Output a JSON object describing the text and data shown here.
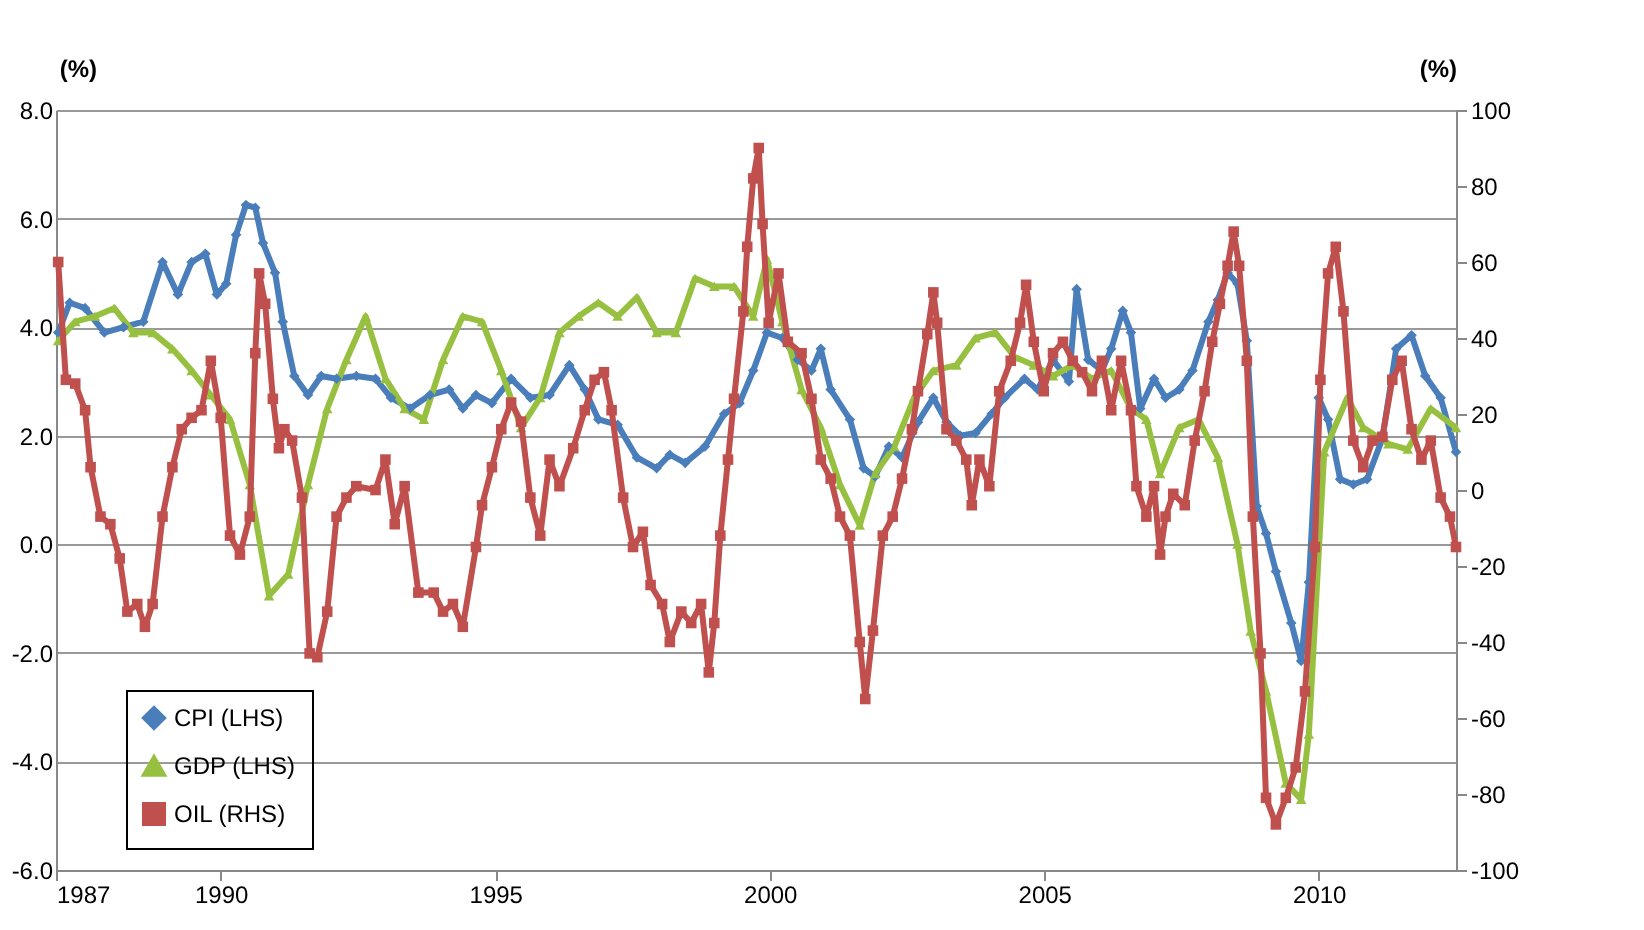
{
  "chart_data": {
    "type": "line",
    "xlim": [
      1987,
      2012.5
    ],
    "xticks": [
      1987,
      1990,
      1995,
      2000,
      2005,
      2010
    ],
    "ylim": [
      -6,
      8
    ],
    "yticks": [
      {
        "value": -6,
        "label": "-6.0"
      },
      {
        "value": -4,
        "label": "-4.0"
      },
      {
        "value": -2,
        "label": "-2.0"
      },
      {
        "value": 0,
        "label": "0.0"
      },
      {
        "value": 2,
        "label": "2.0"
      },
      {
        "value": 4,
        "label": "4.0"
      },
      {
        "value": 6,
        "label": "6.0"
      },
      {
        "value": 8,
        "label": "8.0"
      }
    ],
    "y2lim": [
      -100,
      100
    ],
    "y2ticks": [
      -100,
      -80,
      -60,
      -40,
      -20,
      0,
      20,
      40,
      60,
      80,
      100
    ],
    "ylabel": "(%)",
    "y2label": "(%)",
    "grid": "y",
    "legend": "bottom left",
    "line_style": "solid",
    "series": [
      {
        "name": "CPI (LHS)",
        "color": "#4a7ebb",
        "marker": "diamond",
        "x": [
          1987.04,
          1987.25,
          1987.53,
          1987.88,
          1988.23,
          1988.59,
          1988.94,
          1989.22,
          1989.47,
          1989.72,
          1989.93,
          1990.1,
          1990.28,
          1990.46,
          1990.63,
          1990.77,
          1990.99,
          1991.13,
          1991.34,
          1991.59,
          1991.83,
          1992.11,
          1992.47,
          1992.82,
          1993.1,
          1993.45,
          1993.81,
          1994.16,
          1994.41,
          1994.65,
          1994.94,
          1995.29,
          1995.64,
          1995.99,
          1996.35,
          1996.63,
          1996.88,
          1997.23,
          1997.58,
          1997.94,
          1998.18,
          1998.46,
          1998.82,
          1999.17,
          1999.45,
          1999.7,
          1999.95,
          2000.23,
          2000.51,
          2000.76,
          2000.93,
          2001.11,
          2001.46,
          2001.71,
          2001.92,
          2002.17,
          2002.41,
          2002.7,
          2002.98,
          2003.22,
          2003.47,
          2003.75,
          2004.04,
          2004.28,
          2004.64,
          2004.88,
          2005.16,
          2005.45,
          2005.59,
          2005.8,
          2006.05,
          2006.22,
          2006.43,
          2006.58,
          2006.75,
          2007.0,
          2007.21,
          2007.46,
          2007.7,
          2007.99,
          2008.16,
          2008.34,
          2008.52,
          2008.69,
          2008.87,
          2009.04,
          2009.22,
          2009.5,
          2009.68,
          2009.82,
          2010.0,
          2010.17,
          2010.39,
          2010.63,
          2010.88,
          2011.16,
          2011.41,
          2011.69,
          2011.94,
          2012.22,
          2012.5
        ],
        "values": [
          3.9,
          4.45,
          4.35,
          3.9,
          4.0,
          4.1,
          5.2,
          4.6,
          5.2,
          5.35,
          4.6,
          4.8,
          5.7,
          6.25,
          6.2,
          5.55,
          5.0,
          4.1,
          3.1,
          2.75,
          3.1,
          3.05,
          3.1,
          3.05,
          2.7,
          2.5,
          2.75,
          2.85,
          2.5,
          2.75,
          2.6,
          3.05,
          2.7,
          2.75,
          3.3,
          2.85,
          2.3,
          2.2,
          1.6,
          1.4,
          1.65,
          1.5,
          1.8,
          2.4,
          2.6,
          3.2,
          3.9,
          3.8,
          3.4,
          3.2,
          3.6,
          2.85,
          2.3,
          1.4,
          1.25,
          1.8,
          1.6,
          2.25,
          2.7,
          2.25,
          2.0,
          2.05,
          2.4,
          2.7,
          3.05,
          2.85,
          3.4,
          3.0,
          4.7,
          3.4,
          3.2,
          3.6,
          4.3,
          3.9,
          2.5,
          3.05,
          2.7,
          2.85,
          3.2,
          4.1,
          4.5,
          5.0,
          4.8,
          3.75,
          0.7,
          0.2,
          -0.5,
          -1.45,
          -2.15,
          -0.7,
          2.7,
          2.3,
          1.2,
          1.1,
          1.2,
          1.95,
          3.6,
          3.85,
          3.1,
          2.7,
          1.7
        ]
      },
      {
        "name": "GDP (LHS)",
        "color": "#98c040",
        "marker": "triangle",
        "x": [
          1987.04,
          1987.35,
          1987.71,
          1988.06,
          1988.41,
          1988.76,
          1989.12,
          1989.47,
          1989.82,
          1990.17,
          1990.53,
          1990.88,
          1991.23,
          1991.59,
          1991.94,
          1992.29,
          1992.64,
          1993.0,
          1993.35,
          1993.7,
          1994.05,
          1994.41,
          1994.76,
          1995.11,
          1995.47,
          1995.82,
          1996.17,
          1996.52,
          1996.88,
          1997.23,
          1997.58,
          1997.94,
          1998.29,
          1998.64,
          1998.99,
          1999.35,
          1999.7,
          1999.95,
          2000.23,
          2000.58,
          2000.93,
          2001.28,
          2001.64,
          2001.92,
          2002.27,
          2002.63,
          2002.98,
          2003.4,
          2003.75,
          2004.11,
          2004.46,
          2004.81,
          2005.16,
          2005.52,
          2005.87,
          2006.22,
          2006.58,
          2006.86,
          2007.11,
          2007.46,
          2007.81,
          2008.16,
          2008.52,
          2008.76,
          2009.04,
          2009.4,
          2009.68,
          2009.82,
          2010.1,
          2010.52,
          2010.81,
          2011.27,
          2011.62,
          2012.04,
          2012.5
        ],
        "values": [
          3.75,
          4.1,
          4.2,
          4.35,
          3.9,
          3.9,
          3.6,
          3.2,
          2.75,
          2.3,
          1.1,
          -0.95,
          -0.55,
          1.1,
          2.5,
          3.4,
          4.2,
          3.05,
          2.5,
          2.3,
          3.4,
          4.2,
          4.1,
          3.2,
          2.15,
          2.7,
          3.9,
          4.2,
          4.45,
          4.2,
          4.55,
          3.9,
          3.9,
          4.9,
          4.75,
          4.75,
          4.2,
          5.25,
          4.1,
          2.85,
          2.15,
          1.1,
          0.35,
          1.3,
          1.8,
          2.7,
          3.2,
          3.3,
          3.8,
          3.9,
          3.45,
          3.3,
          3.1,
          3.3,
          3.05,
          3.2,
          2.5,
          2.3,
          1.3,
          2.15,
          2.3,
          1.6,
          0.0,
          -1.6,
          -2.7,
          -4.4,
          -4.7,
          -3.5,
          1.7,
          2.7,
          2.15,
          1.85,
          1.75,
          2.5,
          2.15
        ]
      },
      {
        "name": "OIL (RHS)",
        "color": "#c0504d",
        "marker": "square",
        "axis": "y2",
        "x": [
          1987.04,
          1987.18,
          1987.35,
          1987.53,
          1987.63,
          1987.81,
          1987.99,
          1988.16,
          1988.3,
          1988.48,
          1988.62,
          1988.76,
          1988.94,
          1989.12,
          1989.29,
          1989.47,
          1989.65,
          1989.82,
          1990.0,
          1990.17,
          1990.35,
          1990.53,
          1990.63,
          1990.7,
          1990.81,
          1990.95,
          1991.06,
          1991.16,
          1991.3,
          1991.48,
          1991.62,
          1991.76,
          1991.94,
          1992.11,
          1992.29,
          1992.47,
          1992.82,
          1993.0,
          1993.17,
          1993.35,
          1993.6,
          1993.88,
          1994.05,
          1994.23,
          1994.41,
          1994.65,
          1994.76,
          1994.94,
          1995.11,
          1995.29,
          1995.47,
          1995.64,
          1995.82,
          1995.99,
          1996.17,
          1996.42,
          1996.63,
          1996.81,
          1996.98,
          1997.12,
          1997.33,
          1997.51,
          1997.69,
          1997.83,
          1998.04,
          1998.18,
          1998.39,
          1998.57,
          1998.75,
          1998.89,
          1998.99,
          1999.1,
          1999.24,
          1999.35,
          1999.52,
          1999.59,
          1999.7,
          1999.8,
          1999.87,
          1999.98,
          2000.16,
          2000.33,
          2000.58,
          2000.76,
          2000.93,
          2001.11,
          2001.28,
          2001.46,
          2001.64,
          2001.74,
          2001.88,
          2002.06,
          2002.24,
          2002.41,
          2002.59,
          2002.7,
          2002.87,
          2002.98,
          2003.05,
          2003.22,
          2003.4,
          2003.58,
          2003.68,
          2003.82,
          2004.0,
          2004.18,
          2004.39,
          2004.56,
          2004.67,
          2004.81,
          2004.99,
          2005.16,
          2005.34,
          2005.52,
          2005.69,
          2005.87,
          2006.05,
          2006.22,
          2006.4,
          2006.58,
          2006.68,
          2006.86,
          2007.0,
          2007.11,
          2007.21,
          2007.35,
          2007.56,
          2007.74,
          2007.92,
          2008.06,
          2008.2,
          2008.34,
          2008.45,
          2008.55,
          2008.69,
          2008.8,
          2008.94,
          2009.04,
          2009.22,
          2009.4,
          2009.58,
          2009.75,
          2009.93,
          2010.03,
          2010.17,
          2010.31,
          2010.45,
          2010.63,
          2010.81,
          2010.98,
          2011.16,
          2011.34,
          2011.51,
          2011.69,
          2011.87,
          2012.04,
          2012.22,
          2012.39,
          2012.5
        ],
        "values": [
          60,
          29,
          28,
          21,
          6,
          -7,
          -9,
          -18,
          -32,
          -30,
          -36,
          -30,
          -7,
          6,
          16,
          19,
          21,
          34,
          19,
          -12,
          -17,
          -7,
          36,
          57,
          49,
          24,
          11,
          16,
          13,
          -2,
          -43,
          -44,
          -32,
          -7,
          -2,
          1,
          0,
          8,
          -9,
          1,
          -27,
          -27,
          -32,
          -30,
          -36,
          -15,
          -4,
          6,
          16,
          23,
          18,
          -2,
          -12,
          8,
          1,
          11,
          21,
          29,
          31,
          21,
          -2,
          -15,
          -11,
          -25,
          -30,
          -40,
          -32,
          -35,
          -30,
          -48,
          -35,
          -12,
          8,
          24,
          47,
          64,
          82,
          90,
          70,
          44,
          57,
          39,
          36,
          24,
          8,
          3,
          -7,
          -12,
          -40,
          -55,
          -37,
          -12,
          -7,
          3,
          16,
          26,
          41,
          52,
          44,
          16,
          13,
          8,
          -4,
          8,
          1,
          26,
          34,
          44,
          54,
          39,
          26,
          36,
          39,
          34,
          31,
          26,
          34,
          21,
          34,
          21,
          1,
          -7,
          1,
          -17,
          -7,
          -1,
          -4,
          13,
          26,
          39,
          49,
          59,
          68,
          59,
          34,
          -7,
          -43,
          -81,
          -88,
          -81,
          -73,
          -53,
          -15,
          29,
          57,
          64,
          47,
          13,
          6,
          13,
          14,
          29,
          34,
          16,
          8,
          13,
          -2,
          -7,
          -15
        ]
      }
    ]
  }
}
